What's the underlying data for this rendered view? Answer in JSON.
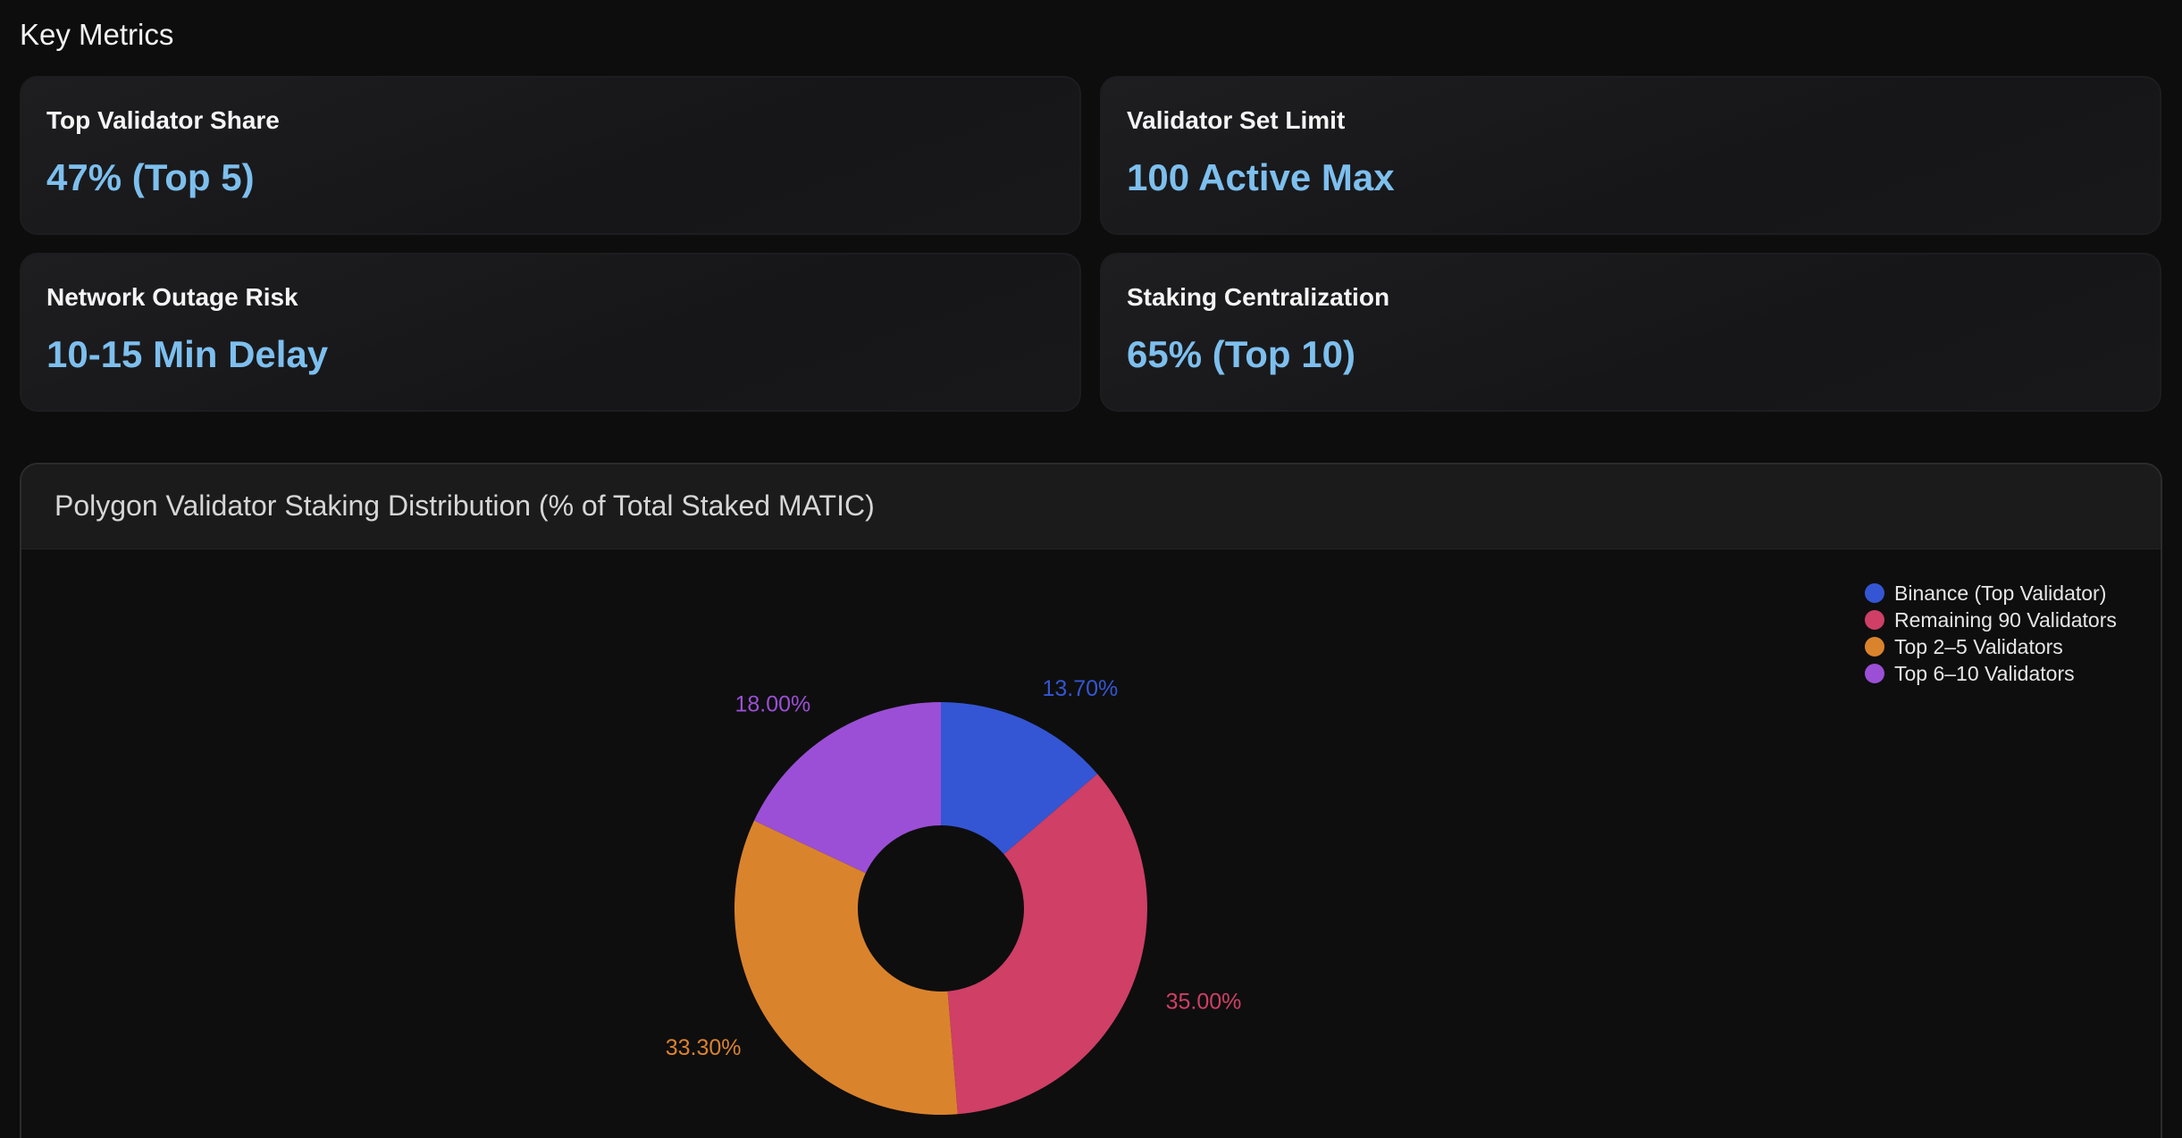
{
  "section_title": "Key Metrics",
  "metrics": [
    {
      "label": "Top Validator Share",
      "value": "47% (Top 5)"
    },
    {
      "label": "Validator Set Limit",
      "value": "100 Active Max"
    },
    {
      "label": "Network Outage Risk",
      "value": "10-15 Min Delay"
    },
    {
      "label": "Staking Centralization",
      "value": "65% (Top 10)"
    }
  ],
  "colors": {
    "metric_value": "#7dbfee",
    "background": "#0d0d0d"
  },
  "chart_data": {
    "type": "pie",
    "variant": "donut",
    "title": "Polygon Validator Staking Distribution (% of Total Staked MATIC)",
    "legend_position": "top-right",
    "slices": [
      {
        "name": "Binance (Top Validator)",
        "value": 13.7,
        "label": "13.70%",
        "color": "#3456d4"
      },
      {
        "name": "Remaining 90 Validators",
        "value": 35.0,
        "label": "35.00%",
        "color": "#cf3f66"
      },
      {
        "name": "Top 2–5 Validators",
        "value": 33.3,
        "label": "33.30%",
        "color": "#da832d"
      },
      {
        "name": "Top 6–10 Validators",
        "value": 18.0,
        "label": "18.00%",
        "color": "#9b4fd6"
      }
    ]
  }
}
